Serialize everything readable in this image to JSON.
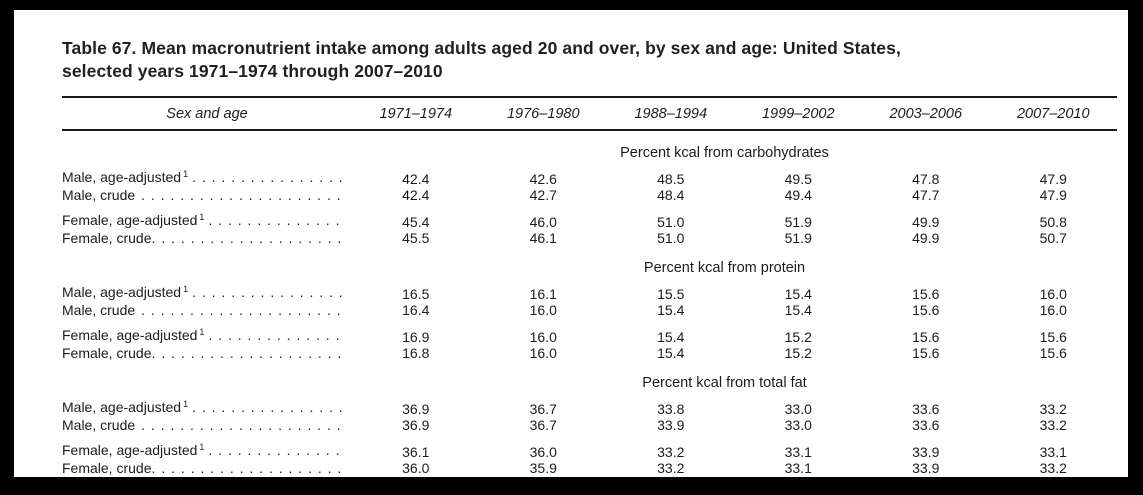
{
  "colors": {
    "frame": "#000000",
    "page": "#ffffff",
    "text": "#1c1c1c",
    "title_text": "#231f20",
    "rule": "#1a1a1a"
  },
  "title": {
    "line1": "Table 67. Mean macronutrient intake among adults aged 20 and over, by sex and age: United States,",
    "line2": "selected years 1971–1974 through 2007–2010"
  },
  "leader_dots": ". . . . . . . . . . . . . . . . . . . . . . . . . . . . . . . . . . . .",
  "columns": [
    "Sex and age",
    "1971–1974",
    "1976–1980",
    "1988–1994",
    "1999–2002",
    "2003–2006",
    "2007–2010"
  ],
  "sections": [
    {
      "header": "Percent kcal from carbohydrates",
      "rows": [
        {
          "label": "Male, age-adjusted",
          "sup": "1",
          "values": [
            "42.4",
            "42.6",
            "48.5",
            "49.5",
            "47.8",
            "47.9"
          ]
        },
        {
          "label": "Male, crude",
          "sup": "",
          "values": [
            "42.4",
            "42.7",
            "48.4",
            "49.4",
            "47.7",
            "47.9"
          ]
        },
        {
          "label": "Female, age-adjusted",
          "sup": "1",
          "values": [
            "45.4",
            "46.0",
            "51.0",
            "51.9",
            "49.9",
            "50.8"
          ]
        },
        {
          "label": "Female, crude.",
          "sup": "",
          "values": [
            "45.5",
            "46.1",
            "51.0",
            "51.9",
            "49.9",
            "50.7"
          ]
        }
      ]
    },
    {
      "header": "Percent kcal from protein",
      "rows": [
        {
          "label": "Male, age-adjusted",
          "sup": "1",
          "values": [
            "16.5",
            "16.1",
            "15.5",
            "15.4",
            "15.6",
            "16.0"
          ]
        },
        {
          "label": "Male, crude",
          "sup": "",
          "values": [
            "16.4",
            "16.0",
            "15.4",
            "15.4",
            "15.6",
            "16.0"
          ]
        },
        {
          "label": "Female, age-adjusted",
          "sup": "1",
          "values": [
            "16.9",
            "16.0",
            "15.4",
            "15.2",
            "15.6",
            "15.6"
          ]
        },
        {
          "label": "Female, crude.",
          "sup": "",
          "values": [
            "16.8",
            "16.0",
            "15.4",
            "15.2",
            "15.6",
            "15.6"
          ]
        }
      ]
    },
    {
      "header": "Percent kcal from total fat",
      "rows": [
        {
          "label": "Male, age-adjusted",
          "sup": "1",
          "values": [
            "36.9",
            "36.7",
            "33.8",
            "33.0",
            "33.6",
            "33.2"
          ]
        },
        {
          "label": "Male, crude",
          "sup": "",
          "values": [
            "36.9",
            "36.7",
            "33.9",
            "33.0",
            "33.6",
            "33.2"
          ]
        },
        {
          "label": "Female, age-adjusted",
          "sup": "1",
          "values": [
            "36.1",
            "36.0",
            "33.2",
            "33.1",
            "33.9",
            "33.1"
          ]
        },
        {
          "label": "Female, crude.",
          "sup": "",
          "values": [
            "36.0",
            "35.9",
            "33.2",
            "33.1",
            "33.9",
            "33.2"
          ]
        }
      ]
    }
  ]
}
